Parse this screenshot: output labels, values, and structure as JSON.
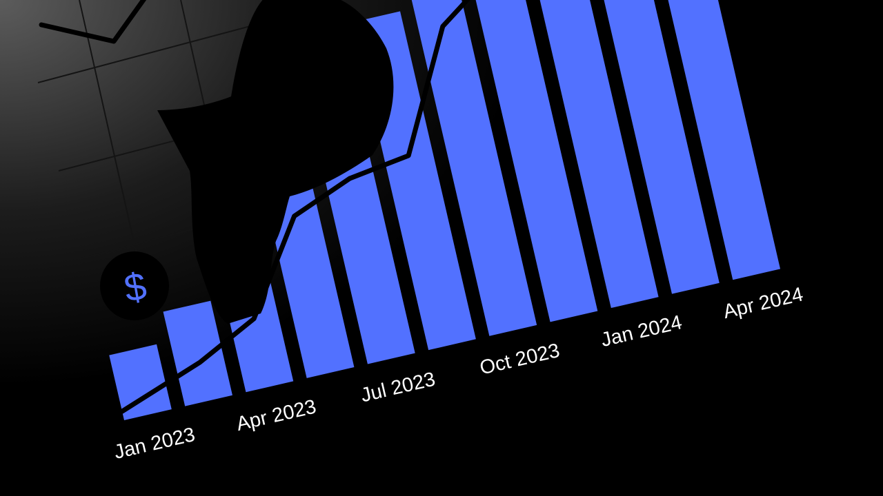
{
  "colors": {
    "background": "#000000",
    "bar": "#5271ff",
    "line": "#000000",
    "label": "#ffffff",
    "grid": "#1a1a1a",
    "glow": "#5c5c5c"
  },
  "icons": {
    "coin": "dollar-coin-icon",
    "person": "person-silhouette-icon"
  },
  "coin_symbol": "$",
  "chart_data": {
    "type": "bar",
    "rotated": true,
    "categories": [
      "Jan 2023",
      "",
      "Apr 2023",
      "",
      "Jul 2023",
      "",
      "Oct 2023",
      "",
      "Jan 2024",
      "",
      "Apr 2024"
    ],
    "tick_labels": [
      "Jan 2023",
      "Apr 2023",
      "Jul 2023",
      "Oct 2023",
      "Jan 2024",
      "Apr 2024"
    ],
    "series": [
      {
        "type": "bar",
        "values": [
          22,
          32,
          52,
          76,
          97,
          111,
          120,
          126,
          128,
          133,
          134
        ]
      },
      {
        "type": "line",
        "values": [
          3,
          13,
          23,
          53,
          61,
          64,
          103,
          117,
          117,
          133,
          145
        ]
      }
    ],
    "ylim": [
      0,
      150
    ],
    "grid": false,
    "legend": "none",
    "title": "",
    "xlabel": "",
    "ylabel": ""
  }
}
